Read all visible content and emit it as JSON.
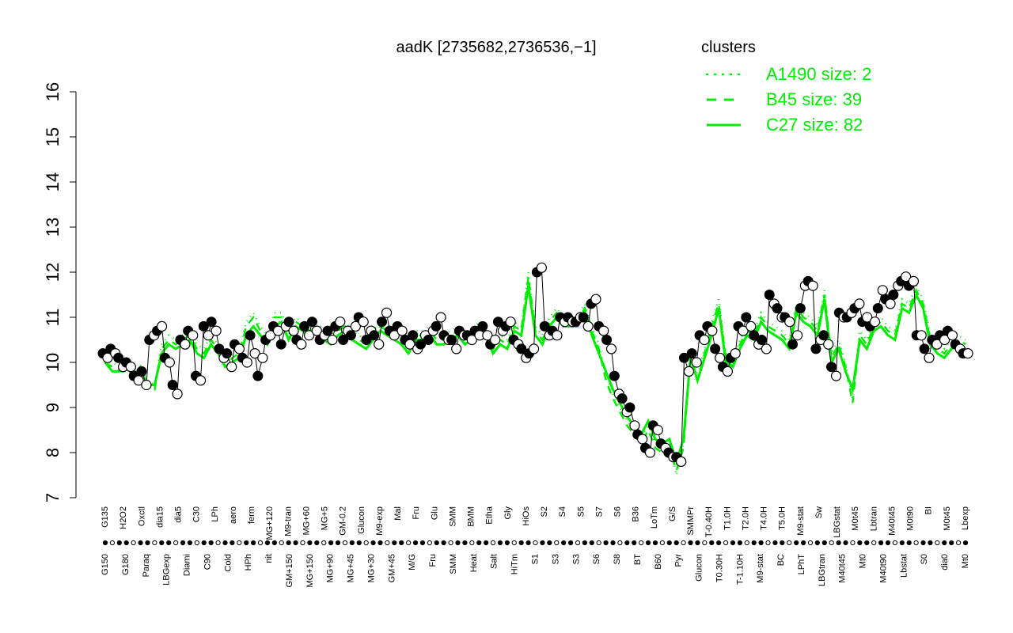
{
  "chart_data": {
    "type": "line",
    "title": "aadK [2735682,2736536,−1]",
    "xlabel": "",
    "ylabel": "",
    "ylim": [
      7,
      16
    ],
    "yticks": [
      7,
      8,
      9,
      10,
      11,
      12,
      13,
      14,
      15,
      16
    ],
    "grid": false,
    "legend": {
      "title": "clusters",
      "placement": "top-right",
      "entries": [
        {
          "label": "A1490 size: 2",
          "style": "dotted"
        },
        {
          "label": "B45 size: 39",
          "style": "dashed"
        },
        {
          "label": "C27 size: 82",
          "style": "solid"
        }
      ]
    },
    "colors": {
      "accent": "#00ee00",
      "points": "#000000",
      "axes": "#000000",
      "background": "#ffffff"
    },
    "top_labels": [
      "G135",
      "H2O2",
      "Oxctl",
      "dia15",
      "dia5",
      "C30",
      "LPh",
      "aero",
      "ferm",
      "MG+120",
      "M9-tran",
      "MG+60",
      "MG+5",
      "GM-0.2",
      "Glucon",
      "M9-exp",
      "Mal",
      "Fru",
      "Glu",
      "SMM",
      "BMM",
      "Etha",
      "Gly",
      "HiOs",
      "S2",
      "S4",
      "S5",
      "S7",
      "S6",
      "B36",
      "LoTm",
      "G/S",
      "SMMPr",
      "T-0.40H",
      "T1.0H",
      "T2.0H",
      "T4.0H",
      "T5.0H",
      "M9-stat",
      "Sw",
      "LBGstat",
      "M0t45",
      "Lbtran",
      "M40t45",
      "M0t90",
      "BI",
      "M0t45",
      "Lbexp"
    ],
    "bottom_labels": [
      "G150",
      "G180",
      "Paraq",
      "LBGexp",
      "Diami",
      "C90",
      "Cold",
      "HPh",
      "nit",
      "GM+150",
      "MG+150",
      "MG+90",
      "MG+45",
      "MG+30",
      "GM+45",
      "M/G",
      "Fru",
      "SMM",
      "Heat",
      "Salt",
      "HiTm",
      "S1",
      "S3",
      "S3",
      "S6",
      "S8",
      "BT",
      "B60",
      "Pyr",
      "Glucon",
      "T0.30H",
      "T-1.10H",
      "M9-stat",
      "BC",
      "LPhT",
      "LBGtran",
      "M40t45",
      "Mt0",
      "M40t90",
      "Lbstat",
      "S0",
      "dia0",
      "Mt0"
    ],
    "bottom_labels_visible_count": 43,
    "x": [
      1,
      2,
      3,
      4,
      5,
      6,
      7,
      8,
      9,
      10,
      11,
      12,
      13,
      14,
      15,
      16,
      17,
      18,
      19,
      20,
      21,
      22,
      23,
      24,
      25,
      26,
      27,
      28,
      29,
      30,
      31,
      32,
      33,
      34,
      35,
      36,
      37,
      38,
      39,
      40,
      41,
      42,
      43,
      44,
      45,
      46,
      47,
      48,
      49,
      50,
      51,
      52,
      53,
      54,
      55,
      56,
      57,
      58,
      59,
      60,
      61,
      62,
      63,
      64,
      65,
      66,
      67,
      68,
      69,
      70,
      71,
      72,
      73,
      74,
      75,
      76,
      77,
      78,
      79,
      80,
      81,
      82,
      83,
      84,
      85,
      86,
      87,
      88,
      89,
      90,
      91,
      92,
      93,
      94,
      95,
      96,
      97,
      98,
      99,
      100,
      101,
      102,
      103,
      104,
      105,
      106,
      107,
      108,
      109,
      110,
      111,
      112,
      113,
      114,
      115,
      116,
      117,
      118,
      119,
      120,
      121,
      122,
      123
    ],
    "series": [
      {
        "name": "A1490 size: 2",
        "style": "dotted",
        "values": [
          10.1,
          10.0,
          9.9,
          9.9,
          9.8,
          9.9,
          9.6,
          9.5,
          10.4,
          10.6,
          10.5,
          10.6,
          10.7,
          10.4,
          10.3,
          10.6,
          10.4,
          10.0,
          10.2,
          10.3,
          10.9,
          11.1,
          10.8,
          10.6,
          11.1,
          11.1,
          10.7,
          11.0,
          10.9,
          10.8,
          10.9,
          10.7,
          10.6,
          10.8,
          10.9,
          10.7,
          10.6,
          10.5,
          10.7,
          10.9,
          10.8,
          10.7,
          10.6,
          10.4,
          10.7,
          10.7,
          10.8,
          10.6,
          10.6,
          10.7,
          10.8,
          10.6,
          10.7,
          10.9,
          10.8,
          10.4,
          10.6,
          10.5,
          10.9,
          10.8,
          12.0,
          10.8,
          10.6,
          11.0,
          11.2,
          11.0,
          11.0,
          11.0,
          11.3,
          10.8,
          10.4,
          9.7,
          9.3,
          9.0,
          8.7,
          8.5,
          8.3,
          8.6,
          8.2,
          8.1,
          8.2,
          7.5,
          8.2,
          10.3,
          9.7,
          10.3,
          10.9,
          11.4,
          10.2,
          10.0,
          10.5,
          10.8,
          10.7,
          11.1,
          10.9,
          10.8,
          10.7,
          10.5,
          11.3,
          11.1,
          11.0,
          10.8,
          11.6,
          10.2,
          10.5,
          10.0,
          9.2,
          10.7,
          10.5,
          10.9,
          11.0,
          10.8,
          10.7,
          11.4,
          11.3,
          11.7,
          11.4,
          10.6,
          10.4,
          10.3,
          10.5,
          10.6,
          10.5
        ]
      },
      {
        "name": "B45 size: 39",
        "style": "dashed",
        "values": [
          10.0,
          9.9,
          9.8,
          9.8,
          9.7,
          9.9,
          9.5,
          9.4,
          10.3,
          10.5,
          10.4,
          10.5,
          10.6,
          10.3,
          10.2,
          10.5,
          10.3,
          9.9,
          10.1,
          10.2,
          10.8,
          11.0,
          10.7,
          10.5,
          11.0,
          11.0,
          10.6,
          10.9,
          10.8,
          10.7,
          10.8,
          10.6,
          10.5,
          10.7,
          10.8,
          10.6,
          10.5,
          10.4,
          10.6,
          10.8,
          10.7,
          10.6,
          10.5,
          10.3,
          10.6,
          10.6,
          10.7,
          10.5,
          10.5,
          10.6,
          10.7,
          10.5,
          10.6,
          10.8,
          10.7,
          10.3,
          10.5,
          10.4,
          10.8,
          10.7,
          11.9,
          10.7,
          10.5,
          10.9,
          11.1,
          10.9,
          10.9,
          10.9,
          11.2,
          10.7,
          10.3,
          9.6,
          9.2,
          8.9,
          8.6,
          8.4,
          8.2,
          8.5,
          8.1,
          8.0,
          8.1,
          7.6,
          8.1,
          10.2,
          9.6,
          10.2,
          10.8,
          11.3,
          10.1,
          9.9,
          10.4,
          10.7,
          10.6,
          11.0,
          10.8,
          10.7,
          10.6,
          10.4,
          11.2,
          11.0,
          10.9,
          10.7,
          11.5,
          10.1,
          10.4,
          9.9,
          9.1,
          10.6,
          10.4,
          10.8,
          10.9,
          10.7,
          10.6,
          11.3,
          11.2,
          11.6,
          11.3,
          10.5,
          10.3,
          10.2,
          10.4,
          10.5,
          10.4
        ]
      },
      {
        "name": "C27 size: 82",
        "style": "solid",
        "values": [
          10.0,
          9.8,
          9.8,
          9.9,
          9.7,
          9.9,
          9.5,
          9.5,
          10.2,
          10.4,
          10.3,
          10.4,
          10.5,
          10.2,
          10.1,
          10.4,
          10.2,
          9.9,
          10.0,
          10.1,
          10.6,
          10.8,
          10.6,
          10.4,
          10.8,
          10.9,
          10.5,
          10.8,
          10.7,
          10.6,
          10.7,
          10.5,
          10.4,
          10.6,
          10.7,
          10.5,
          10.4,
          10.3,
          10.5,
          10.7,
          10.6,
          10.5,
          10.4,
          10.2,
          10.5,
          10.5,
          10.6,
          10.4,
          10.4,
          10.5,
          10.6,
          10.4,
          10.5,
          10.7,
          10.6,
          10.2,
          10.4,
          10.3,
          10.7,
          10.6,
          11.7,
          10.6,
          10.4,
          10.8,
          11.0,
          10.8,
          10.8,
          10.8,
          11.1,
          10.6,
          10.2,
          9.8,
          9.4,
          9.1,
          8.8,
          8.6,
          8.4,
          8.7,
          8.3,
          8.2,
          8.3,
          7.8,
          8.3,
          10.1,
          9.6,
          10.1,
          10.6,
          11.2,
          10.0,
          9.9,
          10.3,
          10.6,
          10.5,
          10.9,
          10.7,
          10.6,
          10.5,
          10.3,
          11.1,
          10.9,
          10.8,
          10.6,
          11.4,
          10.0,
          10.3,
          9.8,
          9.4,
          10.5,
          10.3,
          10.7,
          10.8,
          10.6,
          10.5,
          11.2,
          11.1,
          11.5,
          11.2,
          10.4,
          10.2,
          10.1,
          10.3,
          10.4,
          10.3
        ]
      }
    ],
    "points": [
      [
        10.2,
        10.1
      ],
      [
        10.3,
        10.2
      ],
      [
        10.1,
        9.9
      ],
      [
        10.0,
        9.9
      ],
      [
        9.7,
        9.6
      ],
      [
        9.8,
        9.5
      ],
      [
        10.5,
        10.6
      ],
      [
        10.7,
        10.8
      ],
      [
        10.1,
        10.0
      ],
      [
        9.5,
        9.3
      ],
      [
        10.5,
        10.4
      ],
      [
        10.7,
        10.6
      ],
      [
        9.7,
        9.6
      ],
      [
        10.8,
        10.6
      ],
      [
        10.9,
        10.7
      ],
      [
        10.3,
        10.1
      ],
      [
        10.2,
        9.9
      ],
      [
        10.4,
        10.3
      ],
      [
        10.1,
        10.0
      ],
      [
        10.6,
        10.2
      ],
      [
        9.7,
        10.1
      ],
      [
        10.5,
        10.6
      ],
      [
        10.8,
        10.7
      ],
      [
        10.4,
        10.8
      ],
      [
        10.9,
        10.7
      ],
      [
        10.5,
        10.4
      ],
      [
        10.8,
        10.6
      ],
      [
        10.9,
        10.7
      ],
      [
        10.5,
        10.6
      ],
      [
        10.7,
        10.5
      ],
      [
        10.8,
        10.9
      ],
      [
        10.5,
        10.7
      ],
      [
        10.6,
        10.8
      ],
      [
        11.0,
        10.9
      ],
      [
        10.5,
        10.7
      ],
      [
        10.6,
        10.4
      ],
      [
        10.9,
        11.1
      ],
      [
        10.7,
        10.6
      ],
      [
        10.8,
        10.7
      ],
      [
        10.5,
        10.4
      ],
      [
        10.6,
        10.3
      ],
      [
        10.4,
        10.6
      ],
      [
        10.5,
        10.7
      ],
      [
        10.8,
        11.0
      ],
      [
        10.6,
        10.5
      ],
      [
        10.5,
        10.3
      ],
      [
        10.7,
        10.6
      ],
      [
        10.6,
        10.5
      ],
      [
        10.7,
        10.6
      ],
      [
        10.8,
        10.6
      ],
      [
        10.4,
        10.5
      ],
      [
        10.9,
        10.7
      ],
      [
        10.8,
        10.9
      ],
      [
        10.5,
        10.4
      ],
      [
        10.3,
        10.1
      ],
      [
        10.2,
        10.3
      ],
      [
        12.0,
        12.1
      ],
      [
        10.8,
        10.6
      ],
      [
        10.7,
        10.6
      ],
      [
        11.0,
        10.9
      ],
      [
        11.0,
        10.9
      ],
      [
        10.9,
        11.0
      ],
      [
        11.0,
        10.8
      ],
      [
        11.3,
        11.4
      ],
      [
        10.8,
        10.7
      ],
      [
        10.5,
        10.3
      ],
      [
        9.7,
        9.3
      ],
      [
        9.2,
        8.9
      ],
      [
        9.0,
        8.6
      ],
      [
        8.4,
        8.3
      ],
      [
        8.1,
        8.0
      ],
      [
        8.6,
        8.5
      ],
      [
        8.2,
        8.1
      ],
      [
        8.0,
        7.9
      ],
      [
        7.9,
        7.8
      ],
      [
        10.1,
        9.8
      ],
      [
        10.2,
        10.0
      ],
      [
        10.6,
        10.5
      ],
      [
        10.8,
        10.7
      ],
      [
        10.3,
        10.1
      ],
      [
        9.9,
        9.8
      ],
      [
        10.1,
        10.2
      ],
      [
        10.8,
        10.7
      ],
      [
        11.0,
        10.8
      ],
      [
        10.6,
        10.4
      ],
      [
        10.5,
        10.3
      ],
      [
        11.5,
        11.3
      ],
      [
        11.2,
        11.0
      ],
      [
        11.0,
        10.9
      ],
      [
        10.4,
        10.6
      ],
      [
        11.2,
        11.7
      ],
      [
        11.8,
        11.7
      ],
      [
        10.3,
        10.5
      ],
      [
        10.6,
        10.4
      ],
      [
        9.9,
        9.7
      ],
      [
        11.1,
        11.0
      ],
      [
        11.0,
        11.1
      ],
      [
        11.2,
        11.3
      ],
      [
        10.9,
        11.0
      ],
      [
        10.8,
        10.9
      ],
      [
        11.2,
        11.6
      ],
      [
        11.4,
        11.3
      ],
      [
        11.5,
        11.7
      ],
      [
        11.8,
        11.9
      ],
      [
        11.7,
        11.8
      ],
      [
        10.6,
        10.6
      ],
      [
        10.3,
        10.1
      ],
      [
        10.5,
        10.4
      ],
      [
        10.6,
        10.5
      ],
      [
        10.7,
        10.6
      ],
      [
        10.4,
        10.3
      ],
      [
        10.2,
        10.2
      ]
    ]
  }
}
